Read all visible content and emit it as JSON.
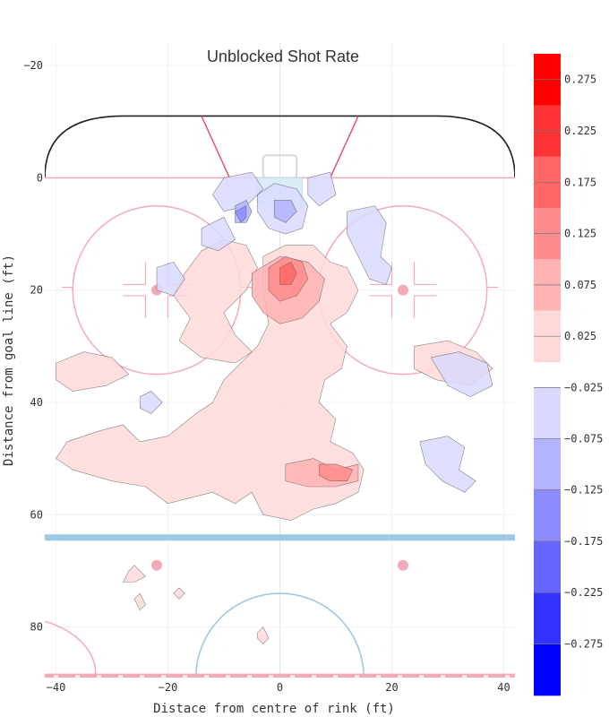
{
  "chart_data": {
    "type": "heatmap",
    "title": "Unblocked Shot Rate",
    "xlabel": "Distace from centre of rink (ft)",
    "ylabel": "Distance from goal line (ft)",
    "xlim": [
      -42,
      42
    ],
    "ylim": [
      -24,
      89
    ],
    "y_reversed": true,
    "grid": true,
    "x_ticks": [
      -40,
      -20,
      0,
      20,
      40
    ],
    "y_ticks": [
      -20,
      0,
      20,
      40,
      60,
      80
    ],
    "x_tick_labels": [
      "−40",
      "−20",
      "0",
      "20",
      "40"
    ],
    "y_tick_labels": [
      "−20",
      "0",
      "20",
      "40",
      "60",
      "80"
    ],
    "positive_scale": {
      "levels": [
        0.025,
        0.075,
        0.125,
        0.175,
        0.225,
        0.275
      ],
      "labels": [
        "0.025",
        "0.075",
        "0.125",
        "0.175",
        "0.225",
        "0.275"
      ],
      "colors": [
        "#ffd9d9",
        "#ffb3b3",
        "#ff8c8c",
        "#ff6666",
        "#ff3333",
        "#ff0000"
      ]
    },
    "negative_scale": {
      "levels": [
        -0.025,
        -0.075,
        -0.125,
        -0.175,
        -0.225,
        -0.275
      ],
      "labels": [
        "−0.025",
        "−0.075",
        "−0.125",
        "−0.175",
        "−0.225",
        "−0.275"
      ],
      "colors": [
        "#d9d9ff",
        "#b3b3ff",
        "#8c8cff",
        "#6666ff",
        "#3333ff",
        "#0000ff"
      ]
    },
    "regions": [
      {
        "sign": "pos",
        "level": 0,
        "points": [
          [
            -40,
            33
          ],
          [
            -35,
            31
          ],
          [
            -30,
            32
          ],
          [
            -27,
            35
          ],
          [
            -31,
            37
          ],
          [
            -37,
            38
          ],
          [
            -40,
            36
          ]
        ]
      },
      {
        "sign": "pos",
        "level": 0,
        "points": [
          [
            -14,
            13
          ],
          [
            -10,
            11
          ],
          [
            -6,
            12
          ],
          [
            -4,
            16
          ],
          [
            -6,
            20
          ],
          [
            -10,
            24
          ],
          [
            -8,
            28
          ],
          [
            -5,
            31
          ],
          [
            -8,
            33
          ],
          [
            -14,
            32
          ],
          [
            -18,
            29
          ],
          [
            -16,
            25
          ],
          [
            -19,
            21
          ],
          [
            -17,
            17
          ]
        ]
      },
      {
        "sign": "pos",
        "level": 0,
        "points": [
          [
            -3,
            14
          ],
          [
            1,
            12
          ],
          [
            6,
            12
          ],
          [
            9,
            15
          ],
          [
            12,
            16
          ],
          [
            14,
            20
          ],
          [
            12,
            24
          ],
          [
            9,
            26
          ],
          [
            12,
            30
          ],
          [
            11,
            34
          ],
          [
            8,
            36
          ],
          [
            7,
            40
          ],
          [
            10,
            43
          ],
          [
            9,
            47
          ],
          [
            13,
            49
          ],
          [
            15,
            52
          ],
          [
            14,
            56
          ],
          [
            10,
            58
          ],
          [
            6,
            59
          ],
          [
            2,
            61
          ],
          [
            -3,
            60
          ],
          [
            -5,
            56
          ],
          [
            -8,
            58
          ],
          [
            -12,
            56
          ],
          [
            -20,
            58
          ],
          [
            -24,
            55
          ],
          [
            -30,
            54
          ],
          [
            -37,
            52
          ],
          [
            -40,
            50
          ],
          [
            -38,
            47
          ],
          [
            -32,
            45
          ],
          [
            -28,
            44
          ],
          [
            -25,
            47
          ],
          [
            -20,
            46
          ],
          [
            -15,
            42
          ],
          [
            -12,
            40
          ],
          [
            -10,
            36
          ],
          [
            -7,
            33
          ],
          [
            -4,
            30
          ],
          [
            -2,
            26
          ],
          [
            -3,
            20
          ]
        ]
      },
      {
        "sign": "pos",
        "level": 0,
        "points": [
          [
            24,
            30
          ],
          [
            30,
            29
          ],
          [
            35,
            31
          ],
          [
            38,
            34
          ],
          [
            34,
            37
          ],
          [
            28,
            36
          ],
          [
            24,
            34
          ]
        ]
      },
      {
        "sign": "pos",
        "level": 0,
        "points": [
          [
            -27,
            70
          ],
          [
            -26,
            69
          ],
          [
            -24,
            71
          ],
          [
            -26,
            72
          ],
          [
            -28,
            72
          ]
        ]
      },
      {
        "sign": "pos",
        "level": 0,
        "points": [
          [
            -26,
            75
          ],
          [
            -25,
            74
          ],
          [
            -24,
            76
          ],
          [
            -25,
            77
          ]
        ]
      },
      {
        "sign": "pos",
        "level": 0,
        "points": [
          [
            -19,
            74
          ],
          [
            -18,
            73
          ],
          [
            -17,
            74
          ],
          [
            -18,
            75
          ]
        ]
      },
      {
        "sign": "pos",
        "level": 0,
        "points": [
          [
            -4,
            81
          ],
          [
            -3,
            80
          ],
          [
            -2,
            82
          ],
          [
            -3,
            83
          ],
          [
            -4,
            82
          ]
        ]
      },
      {
        "sign": "pos",
        "level": 1,
        "points": [
          [
            -5,
            17
          ],
          [
            0,
            14
          ],
          [
            5,
            15
          ],
          [
            8,
            18
          ],
          [
            7,
            22
          ],
          [
            4,
            25
          ],
          [
            0,
            26
          ],
          [
            -3,
            24
          ],
          [
            -5,
            21
          ]
        ]
      },
      {
        "sign": "pos",
        "level": 1,
        "points": [
          [
            1,
            51
          ],
          [
            6,
            50
          ],
          [
            10,
            52
          ],
          [
            14,
            51
          ],
          [
            14,
            54
          ],
          [
            10,
            55
          ],
          [
            5,
            55
          ],
          [
            1,
            54
          ]
        ]
      },
      {
        "sign": "pos",
        "level": 2,
        "points": [
          [
            -2,
            16
          ],
          [
            1,
            14
          ],
          [
            4,
            15
          ],
          [
            5,
            18
          ],
          [
            3,
            21
          ],
          [
            0,
            22
          ],
          [
            -2,
            20
          ]
        ]
      },
      {
        "sign": "pos",
        "level": 2,
        "points": [
          [
            7,
            51
          ],
          [
            10,
            51
          ],
          [
            13,
            52
          ],
          [
            12,
            54
          ],
          [
            9,
            54
          ],
          [
            7,
            53
          ]
        ]
      },
      {
        "sign": "pos",
        "level": 3,
        "points": [
          [
            0,
            16
          ],
          [
            2,
            15
          ],
          [
            3,
            17
          ],
          [
            2,
            19
          ],
          [
            0,
            19
          ]
        ]
      },
      {
        "sign": "neg",
        "level": 0,
        "points": [
          [
            -10,
            0
          ],
          [
            -5,
            -1
          ],
          [
            -3,
            2
          ],
          [
            -6,
            5
          ],
          [
            -10,
            6
          ],
          [
            -12,
            3
          ]
        ]
      },
      {
        "sign": "neg",
        "level": 0,
        "points": [
          [
            -4,
            3
          ],
          [
            -1,
            1
          ],
          [
            3,
            2
          ],
          [
            5,
            5
          ],
          [
            4,
            9
          ],
          [
            1,
            10
          ],
          [
            -2,
            9
          ],
          [
            -4,
            6
          ]
        ]
      },
      {
        "sign": "neg",
        "level": 0,
        "points": [
          [
            5,
            0
          ],
          [
            9,
            -1
          ],
          [
            10,
            3
          ],
          [
            7,
            5
          ],
          [
            5,
            3
          ]
        ]
      },
      {
        "sign": "neg",
        "level": 0,
        "points": [
          [
            12,
            6
          ],
          [
            17,
            5
          ],
          [
            19,
            8
          ],
          [
            18,
            14
          ],
          [
            20,
            16
          ],
          [
            19,
            19
          ],
          [
            16,
            18
          ],
          [
            14,
            14
          ],
          [
            12,
            10
          ]
        ]
      },
      {
        "sign": "neg",
        "level": 0,
        "points": [
          [
            -14,
            9
          ],
          [
            -10,
            7
          ],
          [
            -8,
            11
          ],
          [
            -11,
            13
          ],
          [
            -14,
            12
          ]
        ]
      },
      {
        "sign": "neg",
        "level": 0,
        "points": [
          [
            -22,
            16
          ],
          [
            -19,
            15
          ],
          [
            -17,
            18
          ],
          [
            -19,
            21
          ],
          [
            -22,
            20
          ]
        ]
      },
      {
        "sign": "neg",
        "level": 0,
        "points": [
          [
            27,
            32
          ],
          [
            32,
            31
          ],
          [
            37,
            33
          ],
          [
            38,
            37
          ],
          [
            34,
            39
          ],
          [
            30,
            37
          ]
        ]
      },
      {
        "sign": "neg",
        "level": 0,
        "points": [
          [
            25,
            47
          ],
          [
            30,
            46
          ],
          [
            33,
            48
          ],
          [
            32,
            52
          ],
          [
            35,
            54
          ],
          [
            33,
            56
          ],
          [
            29,
            54
          ],
          [
            26,
            51
          ]
        ]
      },
      {
        "sign": "neg",
        "level": 0,
        "points": [
          [
            -25,
            39
          ],
          [
            -23,
            38
          ],
          [
            -21,
            40
          ],
          [
            -23,
            42
          ],
          [
            -25,
            41
          ]
        ]
      },
      {
        "sign": "neg",
        "level": 1,
        "points": [
          [
            -8,
            5
          ],
          [
            -6,
            4
          ],
          [
            -5,
            6
          ],
          [
            -6,
            8
          ],
          [
            -8,
            8
          ]
        ]
      },
      {
        "sign": "neg",
        "level": 1,
        "points": [
          [
            -1,
            4
          ],
          [
            2,
            4
          ],
          [
            3,
            6
          ],
          [
            1,
            8
          ],
          [
            -1,
            7
          ]
        ]
      },
      {
        "sign": "neg",
        "level": 2,
        "points": [
          [
            -8,
            6
          ],
          [
            -6,
            5
          ],
          [
            -6,
            7
          ],
          [
            -7,
            8
          ]
        ]
      }
    ]
  }
}
